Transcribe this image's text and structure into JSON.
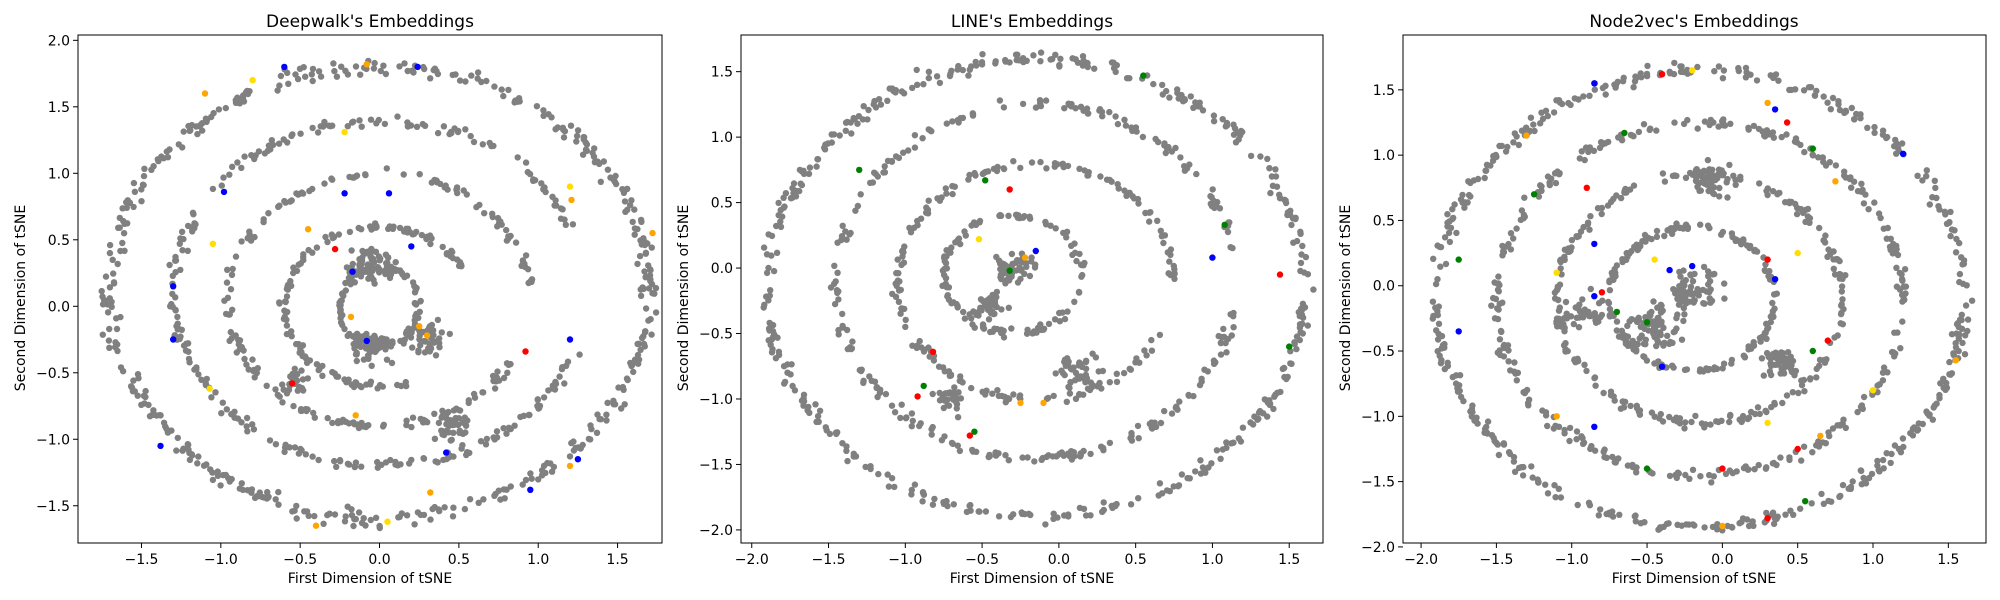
{
  "chart_data": [
    {
      "type": "scatter",
      "title": "Deepwalk's Embeddings",
      "xlabel": "First Dimension of tSNE",
      "ylabel": "Second Dimension of tSNE",
      "xlim": [
        -1.9,
        1.78
      ],
      "ylim": [
        -1.78,
        2.04
      ],
      "xticks": [
        -1.5,
        -1.0,
        -0.5,
        0.0,
        0.5,
        1.0,
        1.5
      ],
      "xtick_labels": [
        "−1.5",
        "−1.0",
        "−0.5",
        "0.0",
        "0.5",
        "1.0",
        "1.5"
      ],
      "yticks": [
        -1.5,
        -1.0,
        -0.5,
        0.0,
        0.5,
        1.0,
        1.5,
        2.0
      ],
      "ytick_labels": [
        "−1.5",
        "−1.0",
        "−0.5",
        "0.0",
        "0.5",
        "1.0",
        "1.5",
        "2.0"
      ],
      "background_points": {
        "color": "#808080",
        "arcs": [
          {
            "r": 1.7,
            "cx": 0.0,
            "cy": 0.1,
            "ry": 1.7,
            "a0": 0,
            "a1": 360,
            "n": 520
          },
          {
            "r": 1.3,
            "cx": 0.0,
            "cy": 0.1,
            "ry": 1.3,
            "a0": 20,
            "a1": 340,
            "n": 300
          },
          {
            "r": 0.95,
            "cx": 0.0,
            "cy": 0.05,
            "ry": 0.95,
            "a0": 0,
            "a1": 330,
            "n": 220
          },
          {
            "r": 0.6,
            "cx": 0.0,
            "cy": 0.0,
            "ry": 0.6,
            "a0": 30,
            "a1": 300,
            "n": 150
          },
          {
            "r": 0.25,
            "cx": 0.0,
            "cy": 0.0,
            "ry": 0.3,
            "a0": 0,
            "a1": 360,
            "n": 120
          }
        ],
        "blobs": [
          {
            "x": -0.05,
            "y": 0.3,
            "s": 0.12,
            "n": 60
          },
          {
            "x": -0.05,
            "y": -0.3,
            "s": 0.12,
            "n": 60
          },
          {
            "x": 0.3,
            "y": -0.25,
            "s": 0.1,
            "n": 40
          },
          {
            "x": -0.55,
            "y": -0.55,
            "s": 0.08,
            "n": 25
          },
          {
            "x": 0.45,
            "y": -0.9,
            "s": 0.1,
            "n": 35
          }
        ]
      },
      "highlight_points": [
        {
          "x": 0.24,
          "y": 1.8,
          "c": "#0000ff"
        },
        {
          "x": 1.2,
          "y": 0.9,
          "c": "#ffdd00"
        },
        {
          "x": 1.21,
          "y": 0.8,
          "c": "#ffa500"
        },
        {
          "x": 1.72,
          "y": 0.55,
          "c": "#ffa500"
        },
        {
          "x": -0.8,
          "y": 1.7,
          "c": "#ffdd00"
        },
        {
          "x": -0.22,
          "y": 1.31,
          "c": "#ffdd00"
        },
        {
          "x": -0.22,
          "y": 0.85,
          "c": "#0000ff"
        },
        {
          "x": 0.06,
          "y": 0.85,
          "c": "#0000ff"
        },
        {
          "x": -0.45,
          "y": 0.58,
          "c": "#ffa500"
        },
        {
          "x": -0.28,
          "y": 0.43,
          "c": "#ff0000"
        },
        {
          "x": -1.05,
          "y": 0.47,
          "c": "#ffdd00"
        },
        {
          "x": -1.3,
          "y": 0.15,
          "c": "#0000ff"
        },
        {
          "x": -0.98,
          "y": 0.86,
          "c": "#0000ff"
        },
        {
          "x": -0.17,
          "y": 0.26,
          "c": "#0000ff"
        },
        {
          "x": 0.2,
          "y": 0.45,
          "c": "#0000ff"
        },
        {
          "x": -0.18,
          "y": -0.08,
          "c": "#ffa500"
        },
        {
          "x": 0.25,
          "y": -0.15,
          "c": "#ffa500"
        },
        {
          "x": 0.3,
          "y": -0.22,
          "c": "#ffa500"
        },
        {
          "x": -0.08,
          "y": -0.26,
          "c": "#0000ff"
        },
        {
          "x": -1.3,
          "y": -0.25,
          "c": "#0000ff"
        },
        {
          "x": -1.07,
          "y": -0.62,
          "c": "#ffdd00"
        },
        {
          "x": -0.55,
          "y": -0.58,
          "c": "#ff0000"
        },
        {
          "x": 0.92,
          "y": -0.34,
          "c": "#ff0000"
        },
        {
          "x": 1.2,
          "y": -0.25,
          "c": "#0000ff"
        },
        {
          "x": -0.15,
          "y": -0.82,
          "c": "#ffa500"
        },
        {
          "x": 0.42,
          "y": -1.1,
          "c": "#0000ff"
        },
        {
          "x": -1.38,
          "y": -1.05,
          "c": "#0000ff"
        },
        {
          "x": 0.32,
          "y": -1.4,
          "c": "#ffa500"
        },
        {
          "x": 0.95,
          "y": -1.38,
          "c": "#0000ff"
        },
        {
          "x": 1.2,
          "y": -1.2,
          "c": "#ffa500"
        },
        {
          "x": 1.25,
          "y": -1.15,
          "c": "#0000ff"
        },
        {
          "x": -0.4,
          "y": -1.65,
          "c": "#ffa500"
        },
        {
          "x": 0.05,
          "y": -1.62,
          "c": "#ffdd00"
        },
        {
          "x": -0.6,
          "y": 1.8,
          "c": "#0000ff"
        },
        {
          "x": -1.1,
          "y": 1.6,
          "c": "#ffa500"
        },
        {
          "x": -0.08,
          "y": 1.82,
          "c": "#ffa500"
        }
      ]
    },
    {
      "type": "scatter",
      "title": "LINE's Embeddings",
      "xlabel": "First Dimension of tSNE",
      "ylabel": "Second Dimension of tSNE",
      "xlim": [
        -2.07,
        1.72
      ],
      "ylim": [
        -2.1,
        1.78
      ],
      "xticks": [
        -2.0,
        -1.5,
        -1.0,
        -0.5,
        0.0,
        0.5,
        1.0,
        1.5
      ],
      "xtick_labels": [
        "−2.0",
        "−1.5",
        "−1.0",
        "−0.5",
        "0.0",
        "0.5",
        "1.0",
        "1.5"
      ],
      "yticks": [
        -2.0,
        -1.5,
        -1.0,
        -0.5,
        0.0,
        0.5,
        1.0,
        1.5
      ],
      "ytick_labels": [
        "−2.0",
        "−1.5",
        "−1.0",
        "−0.5",
        "0.0",
        "0.5",
        "1.0",
        "1.5"
      ],
      "background_points": {
        "color": "#808080",
        "arcs": [
          {
            "r": 1.75,
            "cx": -0.15,
            "cy": -0.15,
            "ry": 1.75,
            "a0": 0,
            "a1": 360,
            "n": 500
          },
          {
            "r": 1.3,
            "cx": -0.15,
            "cy": -0.1,
            "ry": 1.35,
            "a0": 10,
            "a1": 350,
            "n": 300
          },
          {
            "r": 0.9,
            "cx": -0.15,
            "cy": -0.1,
            "ry": 0.9,
            "a0": 0,
            "a1": 340,
            "n": 220
          },
          {
            "r": 0.45,
            "cx": -0.3,
            "cy": -0.05,
            "ry": 0.45,
            "a0": 0,
            "a1": 360,
            "n": 130
          }
        ],
        "blobs": [
          {
            "x": -0.3,
            "y": 0.0,
            "s": 0.1,
            "n": 60
          },
          {
            "x": -0.45,
            "y": -0.3,
            "s": 0.1,
            "n": 40
          },
          {
            "x": 0.15,
            "y": -0.8,
            "s": 0.12,
            "n": 40
          },
          {
            "x": -0.7,
            "y": -1.0,
            "s": 0.1,
            "n": 30
          }
        ]
      },
      "highlight_points": [
        {
          "x": -0.32,
          "y": 0.6,
          "c": "#ff0000"
        },
        {
          "x": -0.48,
          "y": 0.67,
          "c": "#008000"
        },
        {
          "x": -0.52,
          "y": 0.22,
          "c": "#ffdd00"
        },
        {
          "x": -0.15,
          "y": 0.13,
          "c": "#0000ff"
        },
        {
          "x": -0.22,
          "y": 0.08,
          "c": "#ffa500"
        },
        {
          "x": -0.32,
          "y": -0.02,
          "c": "#008000"
        },
        {
          "x": 1.44,
          "y": -0.05,
          "c": "#ff0000"
        },
        {
          "x": 1.0,
          "y": 0.08,
          "c": "#0000ff"
        },
        {
          "x": 1.08,
          "y": 0.33,
          "c": "#008000"
        },
        {
          "x": 0.55,
          "y": 1.47,
          "c": "#008000"
        },
        {
          "x": -0.92,
          "y": -0.98,
          "c": "#ff0000"
        },
        {
          "x": -0.82,
          "y": -0.64,
          "c": "#ff0000"
        },
        {
          "x": -0.58,
          "y": -1.28,
          "c": "#ff0000"
        },
        {
          "x": -0.55,
          "y": -1.25,
          "c": "#008000"
        },
        {
          "x": -0.88,
          "y": -0.9,
          "c": "#008000"
        },
        {
          "x": -0.25,
          "y": -1.03,
          "c": "#ffa500"
        },
        {
          "x": -0.1,
          "y": -1.03,
          "c": "#ffa500"
        },
        {
          "x": 1.5,
          "y": -0.6,
          "c": "#008000"
        },
        {
          "x": -1.3,
          "y": 0.75,
          "c": "#008000"
        }
      ]
    },
    {
      "type": "scatter",
      "title": "Node2vec's Embeddings",
      "xlabel": "First Dimension of tSNE",
      "ylabel": "Second Dimension of tSNE",
      "xlim": [
        -2.12,
        1.75
      ],
      "ylim": [
        -1.97,
        1.92
      ],
      "xticks": [
        -2.0,
        -1.5,
        -1.0,
        -0.5,
        0.0,
        0.5,
        1.0,
        1.5
      ],
      "xtick_labels": [
        "−2.0",
        "−1.5",
        "−1.0",
        "−0.5",
        "0.0",
        "0.5",
        "1.0",
        "1.5"
      ],
      "yticks": [
        -2.0,
        -1.5,
        -1.0,
        -0.5,
        0.0,
        0.5,
        1.0,
        1.5
      ],
      "ytick_labels": [
        "−2.0",
        "−1.5",
        "−1.0",
        "−0.5",
        "0.0",
        "0.5",
        "1.0",
        "1.5"
      ],
      "background_points": {
        "color": "#808080",
        "arcs": [
          {
            "r": 1.75,
            "cx": -0.15,
            "cy": -0.1,
            "ry": 1.75,
            "a0": 0,
            "a1": 360,
            "n": 520
          },
          {
            "r": 1.35,
            "cx": -0.15,
            "cy": -0.1,
            "ry": 1.35,
            "a0": 0,
            "a1": 360,
            "n": 360
          },
          {
            "r": 0.95,
            "cx": -0.15,
            "cy": -0.1,
            "ry": 0.95,
            "a0": 0,
            "a1": 360,
            "n": 280
          },
          {
            "r": 0.55,
            "cx": -0.2,
            "cy": -0.1,
            "ry": 0.55,
            "a0": 0,
            "a1": 360,
            "n": 200
          }
        ],
        "blobs": [
          {
            "x": -0.45,
            "y": -0.3,
            "s": 0.15,
            "n": 80
          },
          {
            "x": -0.2,
            "y": 0.0,
            "s": 0.15,
            "n": 60
          },
          {
            "x": 0.4,
            "y": -0.6,
            "s": 0.1,
            "n": 50
          },
          {
            "x": -0.1,
            "y": 0.8,
            "s": 0.12,
            "n": 50
          },
          {
            "x": -0.95,
            "y": -0.2,
            "s": 0.12,
            "n": 40
          }
        ]
      },
      "highlight_points": [
        {
          "x": -0.4,
          "y": 1.62,
          "c": "#ff0000"
        },
        {
          "x": -0.2,
          "y": 1.65,
          "c": "#ffdd00"
        },
        {
          "x": -0.85,
          "y": 1.55,
          "c": "#0000ff"
        },
        {
          "x": 0.35,
          "y": 1.35,
          "c": "#0000ff"
        },
        {
          "x": 0.43,
          "y": 1.25,
          "c": "#ff0000"
        },
        {
          "x": 0.3,
          "y": 1.4,
          "c": "#ffa500"
        },
        {
          "x": -0.65,
          "y": 1.17,
          "c": "#008000"
        },
        {
          "x": -1.3,
          "y": 1.15,
          "c": "#ffa500"
        },
        {
          "x": 1.2,
          "y": 1.01,
          "c": "#0000ff"
        },
        {
          "x": 0.6,
          "y": 1.05,
          "c": "#008000"
        },
        {
          "x": -0.9,
          "y": 0.75,
          "c": "#ff0000"
        },
        {
          "x": -1.25,
          "y": 0.7,
          "c": "#008000"
        },
        {
          "x": 0.75,
          "y": 0.8,
          "c": "#ffa500"
        },
        {
          "x": -0.85,
          "y": 0.32,
          "c": "#0000ff"
        },
        {
          "x": -1.1,
          "y": 0.1,
          "c": "#ffdd00"
        },
        {
          "x": -0.45,
          "y": 0.2,
          "c": "#ffdd00"
        },
        {
          "x": 0.3,
          "y": 0.2,
          "c": "#ff0000"
        },
        {
          "x": 0.5,
          "y": 0.25,
          "c": "#ffdd00"
        },
        {
          "x": -0.8,
          "y": -0.05,
          "c": "#ff0000"
        },
        {
          "x": -0.85,
          "y": -0.08,
          "c": "#0000ff"
        },
        {
          "x": -0.7,
          "y": -0.2,
          "c": "#008000"
        },
        {
          "x": -0.5,
          "y": -0.28,
          "c": "#008000"
        },
        {
          "x": -0.35,
          "y": 0.12,
          "c": "#0000ff"
        },
        {
          "x": -0.2,
          "y": 0.15,
          "c": "#0000ff"
        },
        {
          "x": 0.7,
          "y": -0.42,
          "c": "#ff0000"
        },
        {
          "x": 0.6,
          "y": -0.5,
          "c": "#008000"
        },
        {
          "x": 1.0,
          "y": -0.8,
          "c": "#ffdd00"
        },
        {
          "x": 1.55,
          "y": -0.57,
          "c": "#ffa500"
        },
        {
          "x": -1.1,
          "y": -1.0,
          "c": "#ffa500"
        },
        {
          "x": -0.85,
          "y": -1.08,
          "c": "#0000ff"
        },
        {
          "x": -0.4,
          "y": -0.62,
          "c": "#0000ff"
        },
        {
          "x": 0.3,
          "y": -1.05,
          "c": "#ffdd00"
        },
        {
          "x": 0.65,
          "y": -1.15,
          "c": "#ffa500"
        },
        {
          "x": 0.5,
          "y": -1.25,
          "c": "#ff0000"
        },
        {
          "x": 0.0,
          "y": -1.4,
          "c": "#ff0000"
        },
        {
          "x": 0.3,
          "y": -1.78,
          "c": "#ff0000"
        },
        {
          "x": 0.55,
          "y": -1.65,
          "c": "#008000"
        },
        {
          "x": 0.0,
          "y": -1.84,
          "c": "#ffa500"
        },
        {
          "x": -1.75,
          "y": 0.2,
          "c": "#008000"
        },
        {
          "x": -1.75,
          "y": -0.35,
          "c": "#0000ff"
        },
        {
          "x": -0.5,
          "y": -1.4,
          "c": "#008000"
        },
        {
          "x": 0.35,
          "y": 0.05,
          "c": "#0000ff"
        }
      ]
    }
  ]
}
